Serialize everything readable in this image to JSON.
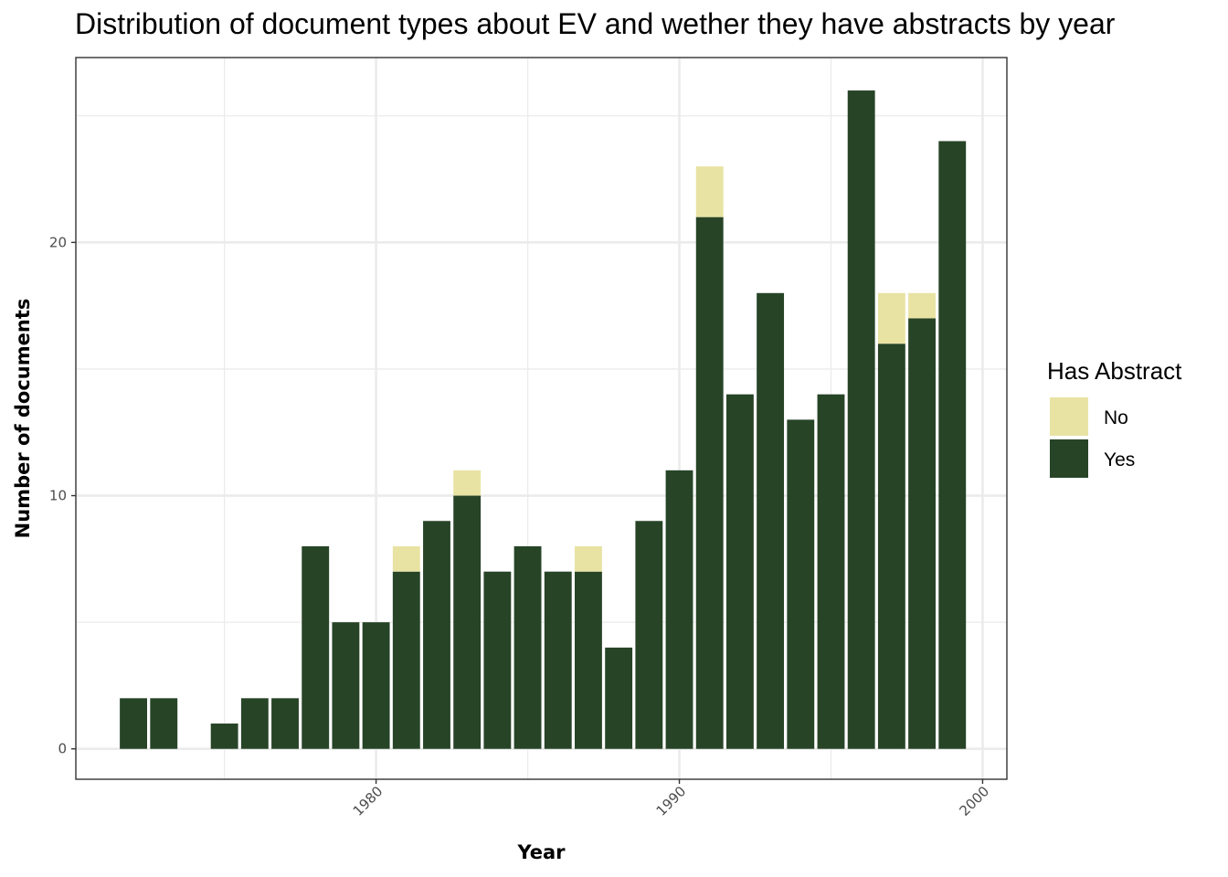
{
  "chart_data": {
    "type": "bar",
    "stacked": true,
    "title": "Distribution of document types about EV and wether they have abstracts by year",
    "xlabel": "Year",
    "ylabel": "Number of documents",
    "xlim": [
      1970.1,
      2000.8
    ],
    "ylim": [
      -1.2,
      27.3
    ],
    "x_ticks": [
      1980,
      1990,
      2000
    ],
    "y_ticks": [
      0,
      10,
      20
    ],
    "grid": true,
    "legend": {
      "title": "Has Abstract",
      "position": "right"
    },
    "categories": [
      1972,
      1973,
      1975,
      1976,
      1977,
      1978,
      1979,
      1980,
      1981,
      1982,
      1983,
      1984,
      1985,
      1986,
      1987,
      1988,
      1989,
      1990,
      1991,
      1992,
      1993,
      1994,
      1995,
      1996,
      1997,
      1998,
      1999
    ],
    "series": [
      {
        "name": "Yes",
        "color": "#274427",
        "values": [
          2,
          2,
          1,
          2,
          2,
          8,
          5,
          5,
          7,
          9,
          10,
          7,
          8,
          7,
          7,
          4,
          9,
          11,
          21,
          14,
          18,
          13,
          14,
          26,
          16,
          17,
          24
        ]
      },
      {
        "name": "No",
        "color": "#e8e3a3",
        "values": [
          0,
          0,
          0,
          0,
          0,
          0,
          0,
          0,
          1,
          0,
          1,
          0,
          0,
          0,
          1,
          0,
          0,
          0,
          2,
          0,
          0,
          0,
          0,
          0,
          2,
          1,
          0
        ]
      }
    ]
  }
}
